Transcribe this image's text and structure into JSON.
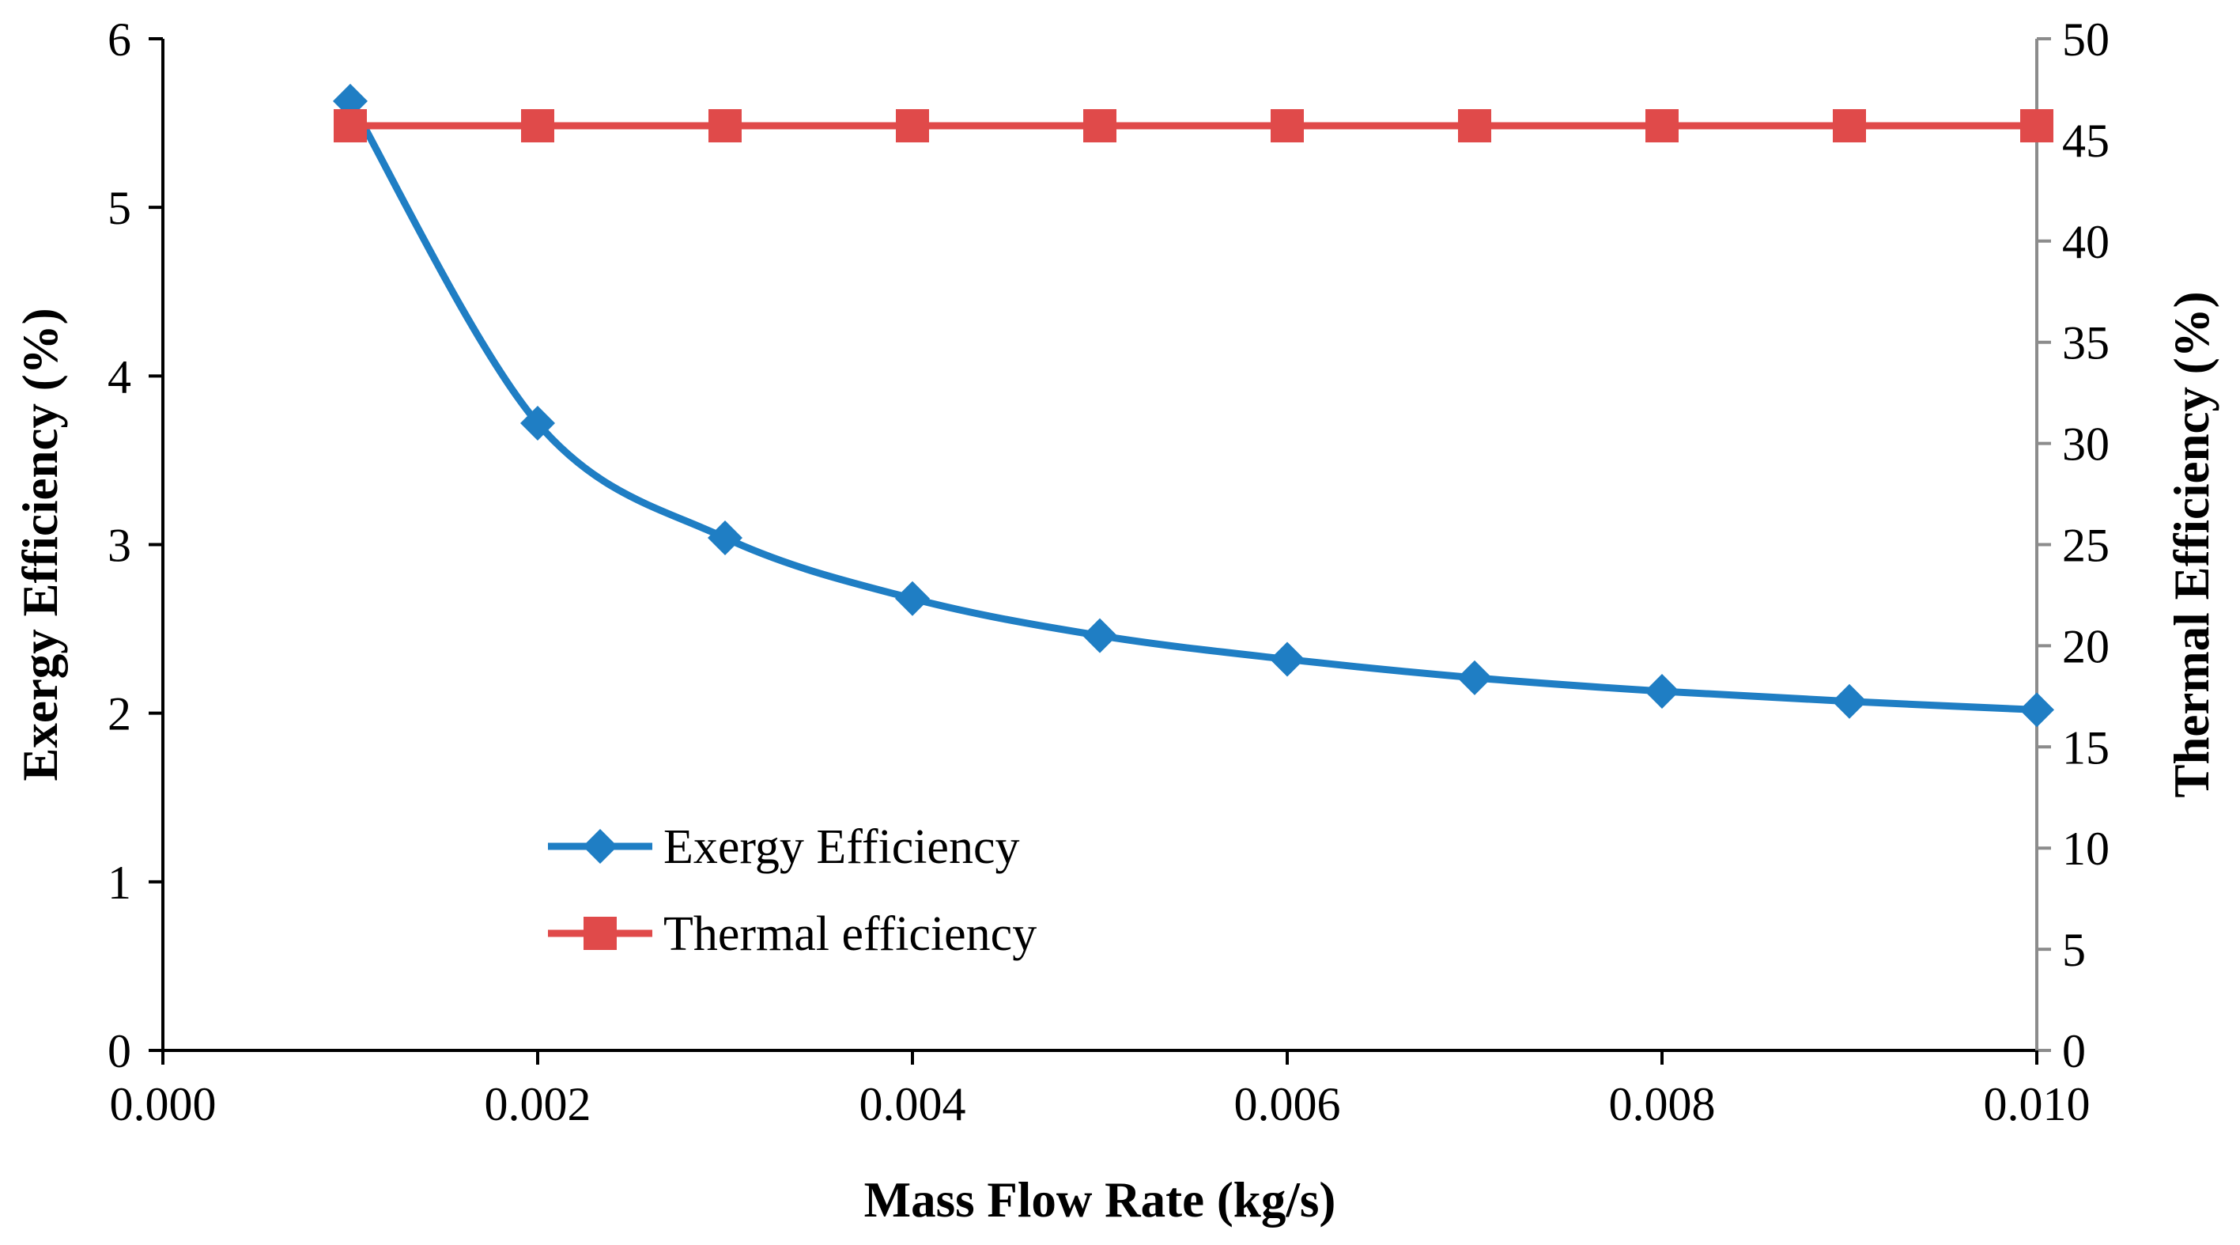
{
  "chart_data": {
    "type": "line",
    "title": "",
    "xlabel": "Mass Flow Rate (kg/s)",
    "ylabel": "Exergy Efficiency (%)",
    "y2label": "Thermal Efficiency (%)",
    "xlim": [
      0,
      0.01
    ],
    "ylim": [
      0,
      6
    ],
    "y2lim": [
      0,
      50
    ],
    "x_ticks": [
      0,
      0.002,
      0.004,
      0.006,
      0.008,
      0.01
    ],
    "x_tick_labels": [
      "0.000",
      "0.002",
      "0.004",
      "0.006",
      "0.008",
      "0.010"
    ],
    "y_ticks": [
      0,
      1,
      2,
      3,
      4,
      5,
      6
    ],
    "y_tick_labels": [
      "0",
      "1",
      "2",
      "3",
      "4",
      "5",
      "6"
    ],
    "y2_ticks": [
      0,
      5,
      10,
      15,
      20,
      25,
      30,
      35,
      40,
      45,
      50
    ],
    "y2_tick_labels": [
      "0",
      "5",
      "10",
      "15",
      "20",
      "25",
      "30",
      "35",
      "40",
      "45",
      "50"
    ],
    "grid": false,
    "legend_position": "lower-left",
    "x": [
      0.001,
      0.002,
      0.003,
      0.004,
      0.005,
      0.006,
      0.007,
      0.008,
      0.009,
      0.01
    ],
    "series": [
      {
        "name": "Exergy Efficiency",
        "axis": "left",
        "marker": "diamond",
        "color": "#1f7ec4",
        "values": [
          5.63,
          3.72,
          3.04,
          2.68,
          2.46,
          2.32,
          2.21,
          2.13,
          2.07,
          2.02
        ]
      },
      {
        "name": "Thermal efficiency",
        "axis": "right",
        "marker": "square",
        "color": "#e04a4a",
        "values": [
          45.7,
          45.7,
          45.7,
          45.7,
          45.7,
          45.7,
          45.7,
          45.7,
          45.7,
          45.7
        ]
      }
    ]
  }
}
